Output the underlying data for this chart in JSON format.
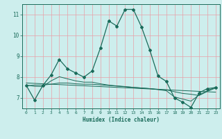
{
  "xlabel": "Humidex (Indice chaleur)",
  "bg_color": "#cdeeed",
  "line_color": "#1a6b5a",
  "grid_color_v": "#e8a0a8",
  "grid_color_h": "#c8dede",
  "xlim": [
    -0.5,
    23.5
  ],
  "ylim": [
    6.5,
    11.5
  ],
  "xticks": [
    0,
    1,
    2,
    3,
    4,
    5,
    6,
    7,
    8,
    9,
    10,
    11,
    12,
    13,
    14,
    15,
    16,
    17,
    18,
    19,
    20,
    21,
    22,
    23
  ],
  "yticks": [
    7,
    8,
    9,
    10,
    11
  ],
  "line1_x": [
    0,
    1,
    2,
    3,
    4,
    5,
    6,
    7,
    8,
    9,
    10,
    11,
    12,
    13,
    14,
    15,
    16,
    17,
    18,
    19,
    20,
    21,
    22,
    23
  ],
  "line1_y": [
    7.6,
    6.9,
    7.6,
    8.1,
    8.85,
    8.4,
    8.2,
    8.0,
    8.3,
    9.4,
    10.7,
    10.45,
    11.25,
    11.25,
    10.4,
    9.3,
    8.05,
    7.8,
    7.0,
    6.8,
    6.55,
    7.25,
    7.45,
    7.5
  ],
  "line2_x": [
    0,
    1,
    2,
    3,
    4,
    5,
    6,
    7,
    8,
    9,
    10,
    11,
    12,
    13,
    14,
    15,
    16,
    17,
    18,
    19,
    20,
    21,
    22,
    23
  ],
  "line2_y": [
    7.58,
    7.62,
    7.62,
    7.66,
    7.72,
    7.72,
    7.68,
    7.66,
    7.66,
    7.63,
    7.6,
    7.57,
    7.54,
    7.51,
    7.48,
    7.45,
    7.42,
    7.39,
    7.3,
    7.22,
    7.18,
    7.12,
    7.32,
    7.48
  ],
  "line3_x": [
    0,
    23
  ],
  "line3_y": [
    7.72,
    7.28
  ],
  "line4_x": [
    0,
    1,
    2,
    3,
    4,
    5,
    6,
    7,
    8,
    9,
    10,
    11,
    12,
    13,
    14,
    15,
    16,
    17,
    18,
    19,
    20,
    21,
    22,
    23
  ],
  "line4_y": [
    7.62,
    7.56,
    7.55,
    7.82,
    8.02,
    7.92,
    7.82,
    7.76,
    7.76,
    7.68,
    7.62,
    7.58,
    7.55,
    7.51,
    7.48,
    7.45,
    7.4,
    7.35,
    7.05,
    6.95,
    6.85,
    7.15,
    7.35,
    7.52
  ]
}
